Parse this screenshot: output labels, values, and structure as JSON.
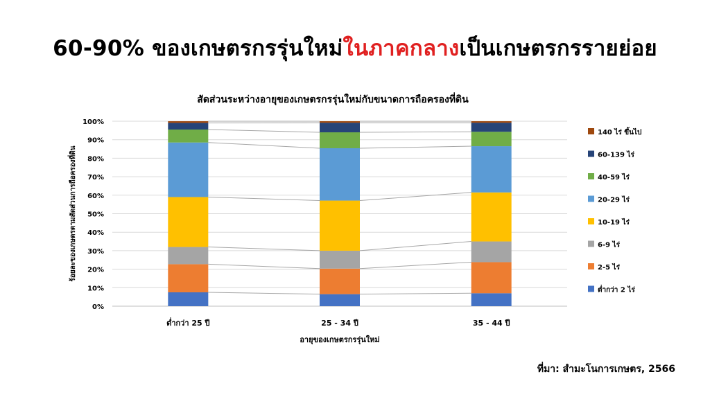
{
  "slide": {
    "title_part1": "60-90% ของเกษตรกรรุ่นใหม่",
    "title_highlight": "ในภาคกลาง",
    "title_part2": "เป็นเกษตรกรรายย่อย",
    "highlight_color": "#e02020",
    "source": "ที่มา: สำมะโนการเกษตร, 2566"
  },
  "chart_data": {
    "type": "bar",
    "stacked": true,
    "normalized_percent": true,
    "title": "สัดส่วนระหว่างอายุของเกษตรกรรุ่นใหม่กับขนาดการถือครองที่ดิน",
    "xlabel": "อายุของเกษตรกรรุ่นใหม่",
    "ylabel": "ร้อยละของเกษตรตามสัดส่วนการถือครองที่ดิน",
    "ylim": [
      0,
      100
    ],
    "yticks": [
      "0%",
      "10%",
      "20%",
      "30%",
      "40%",
      "50%",
      "60%",
      "70%",
      "80%",
      "90%",
      "100%"
    ],
    "grid": true,
    "legend_position": "right",
    "series_connector_lines": true,
    "categories": [
      "ต่ำกว่า 25 ปี",
      "25 - 34 ปี",
      "35 - 44 ปี"
    ],
    "series": [
      {
        "name": "ต่ำกว่า 2 ไร่",
        "color": "#4472c4",
        "values": [
          7.5,
          6.5,
          7.0
        ]
      },
      {
        "name": "2-5 ไร่",
        "color": "#ed7d31",
        "values": [
          15.2,
          13.8,
          16.8
        ]
      },
      {
        "name": "6-9 ไร่",
        "color": "#a5a5a5",
        "values": [
          9.3,
          9.7,
          11.2
        ]
      },
      {
        "name": "10-19 ไร่",
        "color": "#ffc000",
        "values": [
          27.0,
          27.1,
          26.5
        ]
      },
      {
        "name": "20-29 ไร่",
        "color": "#5b9bd5",
        "values": [
          29.5,
          28.3,
          25.0
        ]
      },
      {
        "name": "40-59 ไร่",
        "color": "#70ad47",
        "values": [
          7.0,
          8.6,
          7.8
        ]
      },
      {
        "name": "60-139 ไร่",
        "color": "#264478",
        "values": [
          3.6,
          5.2,
          4.9
        ]
      },
      {
        "name": "140 ไร่ ขึ้นไป",
        "color": "#9e480e",
        "values": [
          0.9,
          0.8,
          0.8
        ]
      }
    ]
  }
}
